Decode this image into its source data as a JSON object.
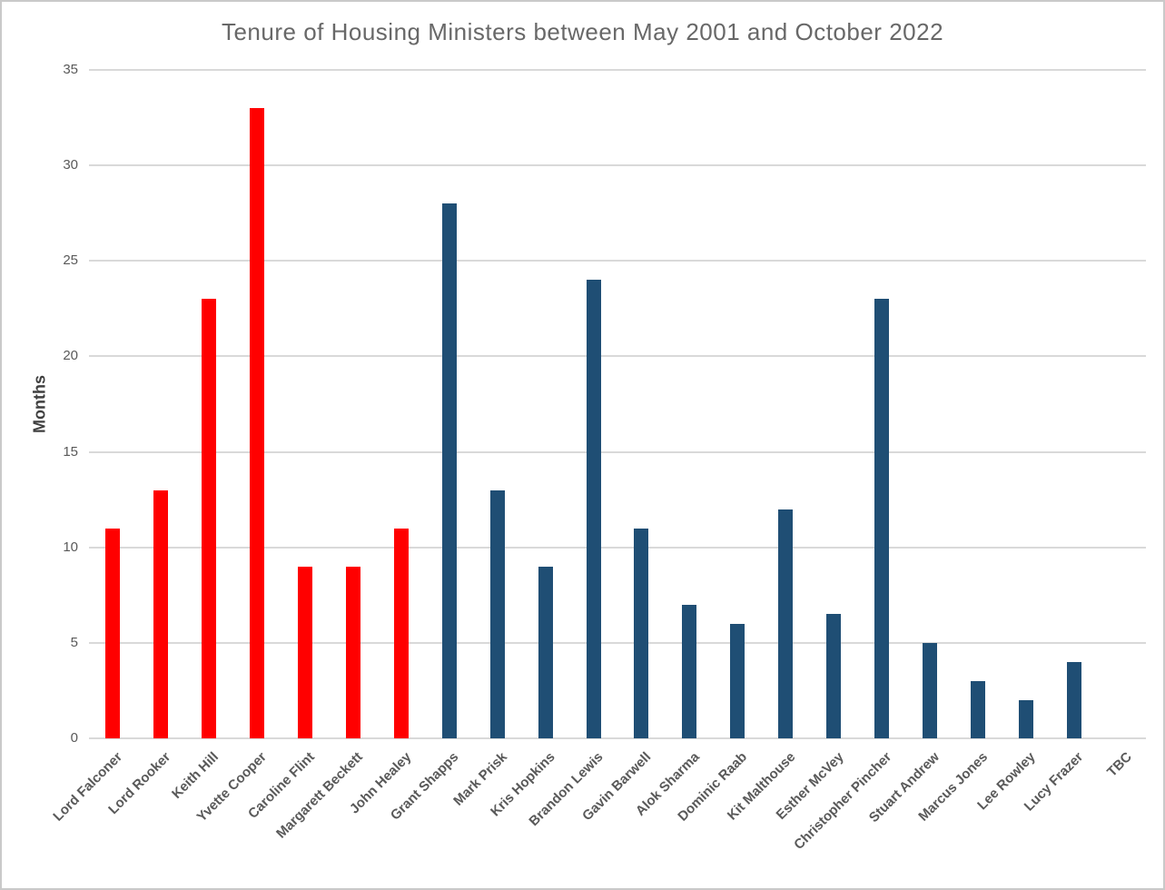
{
  "page": {
    "background": "#ffffff",
    "border_color": "#c9c9c9"
  },
  "chart_data": {
    "type": "bar",
    "title": "Tenure of Housing Ministers between May 2001 and October 2022",
    "xlabel": "",
    "ylabel": "Months",
    "categories": [
      "Lord Falconer",
      "Lord Rooker",
      "Keith Hill",
      "Yvette Cooper",
      "Caroline Flint",
      "Margarett Beckett",
      "John Healey",
      "Grant Shapps",
      "Mark Prisk",
      "Kris Hopkins",
      "Brandon Lewis",
      "Gavin Barwell",
      "Alok Sharma",
      "Dominic Raab",
      "Kit Malthouse",
      "Esther McVey",
      "Christopher Pincher",
      "Stuart Andrew",
      "Marcus Jones",
      "Lee Rowley",
      "Lucy Frazer",
      "TBC"
    ],
    "values": [
      11,
      13,
      23,
      33,
      9,
      9,
      11,
      28,
      13,
      9,
      24,
      11,
      7,
      6,
      12,
      6.5,
      23,
      5,
      3,
      2,
      4,
      0
    ],
    "point_colors": [
      "#ff0000",
      "#ff0000",
      "#ff0000",
      "#ff0000",
      "#ff0000",
      "#ff0000",
      "#ff0000",
      "#1f4e74",
      "#1f4e74",
      "#1f4e74",
      "#1f4e74",
      "#1f4e74",
      "#1f4e74",
      "#1f4e74",
      "#1f4e74",
      "#1f4e74",
      "#1f4e74",
      "#1f4e74",
      "#1f4e74",
      "#1f4e74",
      "#1f4e74",
      "#1f4e74"
    ],
    "ylim": [
      0,
      35
    ],
    "ytick_step": 5,
    "ytick_labels": [
      "0",
      "5",
      "10",
      "15",
      "20",
      "25",
      "30",
      "35"
    ],
    "grid": "horizontal",
    "legend": "none",
    "colors": {
      "labour_red": "#ff0000",
      "conservative_blue": "#1f4e74",
      "gridline": "#d9d9d9",
      "tick_text": "#595959",
      "title_text": "#686868",
      "axis_label_text": "#3f3f3f"
    }
  }
}
